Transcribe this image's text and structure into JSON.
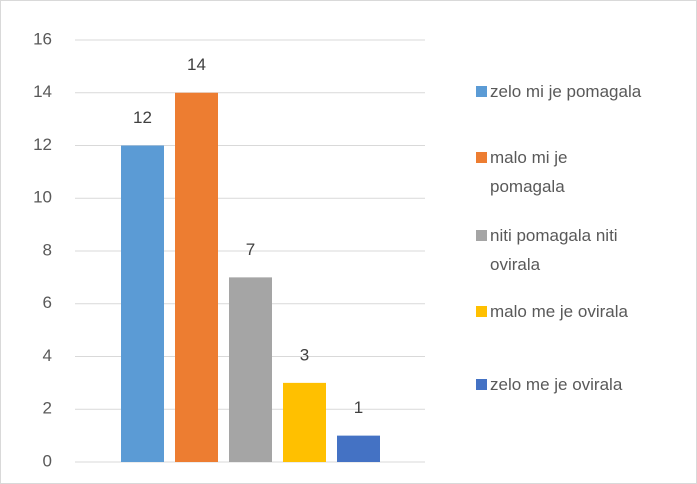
{
  "chart_data": {
    "type": "bar",
    "series": [
      {
        "name": "zelo mi je pomagala",
        "color": "#5b9bd5",
        "values": [
          12
        ]
      },
      {
        "name": "malo mi je pomagala",
        "color": "#ed7d31",
        "values": [
          14
        ]
      },
      {
        "name": "niti pomagala niti ovirala",
        "color": "#a5a5a5",
        "values": [
          7
        ]
      },
      {
        "name": "malo me je ovirala",
        "color": "#ffc000",
        "values": [
          3
        ]
      },
      {
        "name": "zelo me je ovirala",
        "color": "#4472c4",
        "values": [
          1
        ]
      }
    ],
    "ylim": [
      0,
      16
    ],
    "yticks": [
      0,
      2,
      4,
      6,
      8,
      10,
      12,
      14,
      16
    ],
    "grid": true,
    "legend": "right"
  }
}
